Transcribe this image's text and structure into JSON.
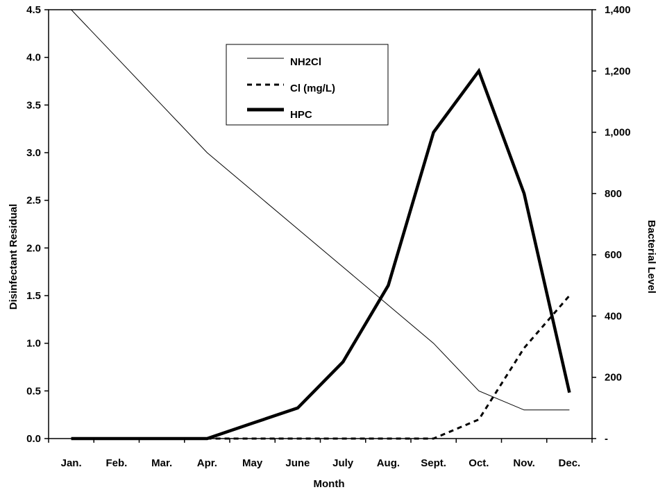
{
  "chart_data": {
    "type": "line",
    "xlabel": "Month",
    "ylabel": "Disinfectant Residual",
    "y2label": "Bacterial Level",
    "categories": [
      "Jan.",
      "Feb.",
      "Mar.",
      "Apr.",
      "May",
      "June",
      "July",
      "Aug.",
      "Sept.",
      "Oct.",
      "Nov.",
      "Dec."
    ],
    "ylim": [
      0,
      4.5
    ],
    "y2lim": [
      0,
      1400
    ],
    "y_ticks": [
      "0.0",
      "0.5",
      "1.0",
      "1.5",
      "2.0",
      "2.5",
      "3.0",
      "3.5",
      "4.0",
      "4.5"
    ],
    "y2_ticks": [
      "-",
      "200",
      "400",
      "600",
      "800",
      "1,000",
      "1,200",
      "1,400"
    ],
    "grid": false,
    "legend_position": "top-center",
    "series": [
      {
        "name": "NH2Cl",
        "axis": "left",
        "style": "thin-solid",
        "values": [
          4.5,
          4.0,
          3.5,
          3.0,
          2.6,
          2.2,
          1.8,
          1.4,
          1.0,
          0.5,
          0.3,
          0.3
        ]
      },
      {
        "name": "Cl (mg/L)",
        "axis": "left",
        "style": "dashed",
        "values": [
          0,
          0,
          0,
          0,
          0,
          0,
          0,
          0,
          0,
          0.2,
          0.95,
          1.5
        ]
      },
      {
        "name": "HPC",
        "axis": "right",
        "style": "thick-solid",
        "values": [
          0,
          0,
          0,
          0,
          50,
          100,
          250,
          500,
          1000,
          1200,
          800,
          150
        ]
      }
    ],
    "colors": {
      "line": "#000000",
      "background": "#ffffff"
    }
  }
}
